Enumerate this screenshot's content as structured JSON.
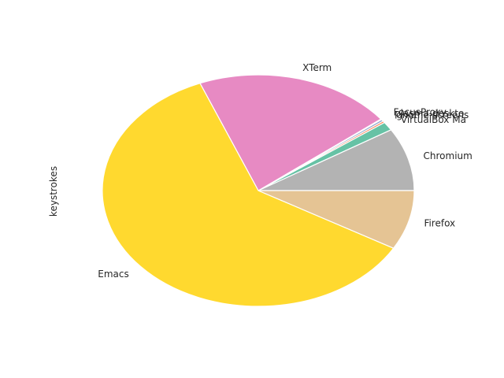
{
  "chart_data": {
    "type": "pie",
    "ylabel": "keystrokes",
    "start_angle_deg": 0,
    "direction": "counterclockwise",
    "slices": [
      {
        "label": "Chromium",
        "value": 8.8,
        "color": "#b3b3b3"
      },
      {
        "label": "VirtualBox Ma",
        "value": 1.2,
        "color": "#66c2a5"
      },
      {
        "label": "gnome-screens",
        "value": 0.25,
        "color": "#fc8d62"
      },
      {
        "label": "plasma-deskto",
        "value": 0.25,
        "color": "#8da0cb"
      },
      {
        "label": "FocusProxy",
        "value": 0.1,
        "color": "#8dd3c7"
      },
      {
        "label": "XTerm",
        "value": 20.5,
        "color": "#e78ac3"
      },
      {
        "label": "Emacs",
        "value": 60.6,
        "color": "#ffd92f"
      },
      {
        "label": "Firefox",
        "value": 8.3,
        "color": "#e5c494"
      }
    ]
  }
}
